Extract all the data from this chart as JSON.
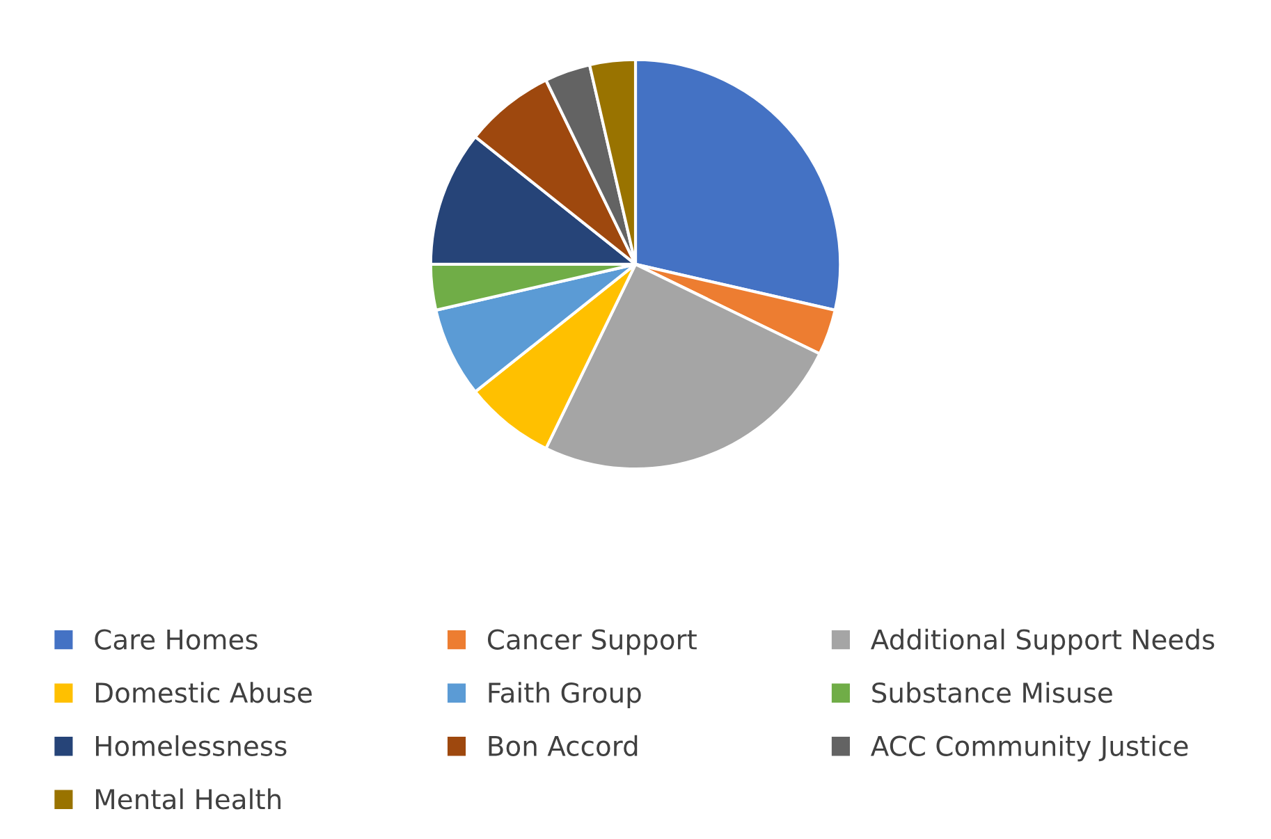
{
  "chart_data": {
    "type": "pie",
    "categories": [
      "Care Homes",
      "Cancer Support",
      "Additional Support Needs",
      "Domestic Abuse",
      "Faith Group",
      "Substance Misuse",
      "Homelessness",
      "Bon Accord",
      "ACC Community Justice",
      "Mental Health"
    ],
    "values": [
      28.6,
      3.6,
      25,
      7.1,
      7.1,
      3.6,
      10.7,
      7.1,
      3.6,
      3.6
    ],
    "colors": [
      "#4472c4",
      "#ed7d31",
      "#a5a5a5",
      "#ffc000",
      "#5b9bd5",
      "#70ad47",
      "#264478",
      "#9e480e",
      "#636363",
      "#997300"
    ],
    "legend": "bottom"
  }
}
